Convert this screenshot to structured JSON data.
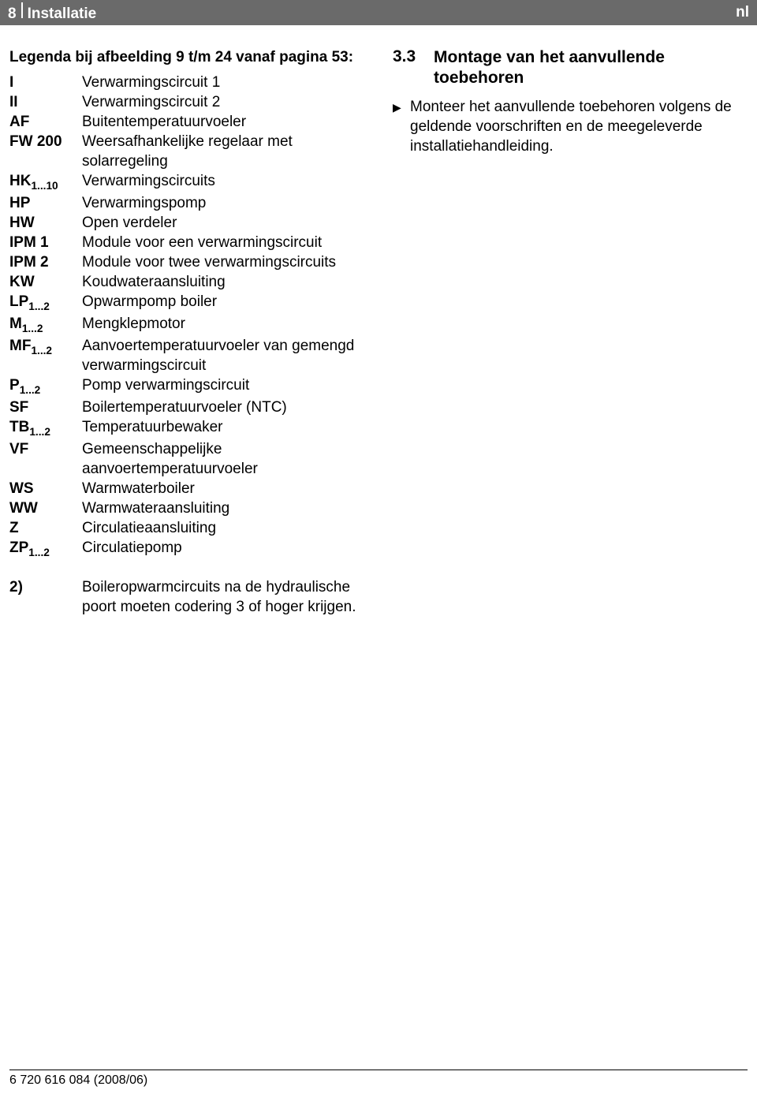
{
  "header": {
    "page_number": "8",
    "section_title": "Installatie",
    "lang": "nl",
    "bg_color": "#6a6a6a",
    "text_color": "#ffffff"
  },
  "left": {
    "legend_title": "Legenda bij afbeelding 9 t/m 24 vanaf pagina 53:",
    "items": [
      {
        "key": "I",
        "key_sub": "",
        "val": "Verwarmingscircuit 1"
      },
      {
        "key": "II",
        "key_sub": "",
        "val": "Verwarmingscircuit 2"
      },
      {
        "key": "AF",
        "key_sub": "",
        "val": "Buitentemperatuurvoeler"
      },
      {
        "key": "FW 200",
        "key_sub": "",
        "val": "Weersafhankelijke regelaar met solarregeling"
      },
      {
        "key": "HK",
        "key_sub": "1...10",
        "val": "Verwarmingscircuits"
      },
      {
        "key": "HP",
        "key_sub": "",
        "val": "Verwarmingspomp"
      },
      {
        "key": "HW",
        "key_sub": "",
        "val": "Open verdeler"
      },
      {
        "key": "IPM 1",
        "key_sub": "",
        "val": "Module voor een verwarmingscircuit"
      },
      {
        "key": "IPM 2",
        "key_sub": "",
        "val": "Module voor twee verwarmingscircuits"
      },
      {
        "key": "KW",
        "key_sub": "",
        "val": "Koudwateraansluiting"
      },
      {
        "key": "LP",
        "key_sub": "1...2",
        "val": "Opwarmpomp boiler"
      },
      {
        "key": "M",
        "key_sub": "1...2",
        "val": "Mengklepmotor"
      },
      {
        "key": "MF",
        "key_sub": "1...2",
        "val": "Aanvoertemperatuurvoeler van gemengd verwarmingscircuit"
      },
      {
        "key": "P",
        "key_sub": "1...2",
        "val": "Pomp verwarmingscircuit"
      },
      {
        "key": "SF",
        "key_sub": "",
        "val": "Boilertemperatuurvoeler (NTC)"
      },
      {
        "key": "TB",
        "key_sub": "1...2",
        "val": "Temperatuurbewaker"
      },
      {
        "key": "VF",
        "key_sub": "",
        "val": "Gemeenschappelijke aanvoertemperatuurvoeler"
      },
      {
        "key": "WS",
        "key_sub": "",
        "val": "Warmwaterboiler"
      },
      {
        "key": "WW",
        "key_sub": "",
        "val": "Warmwateraansluiting"
      },
      {
        "key": "Z",
        "key_sub": "",
        "val": "Circulatieaansluiting"
      },
      {
        "key": "ZP",
        "key_sub": "1...2",
        "val": "Circulatiepomp"
      }
    ],
    "note": {
      "key": "2)",
      "val": "Boileropwarmcircuits na de hydraulische poort moeten codering 3 of hoger krijgen."
    }
  },
  "right": {
    "heading_number": "3.3",
    "heading_title": "Montage van het aanvullende toebehoren",
    "bullets": [
      "Monteer het aanvullende toebehoren volgens de geldende voorschriften en de meegeleverde installatiehandleiding."
    ]
  },
  "footer": {
    "doc_id": "6 720 616 084 (2008/06)"
  }
}
